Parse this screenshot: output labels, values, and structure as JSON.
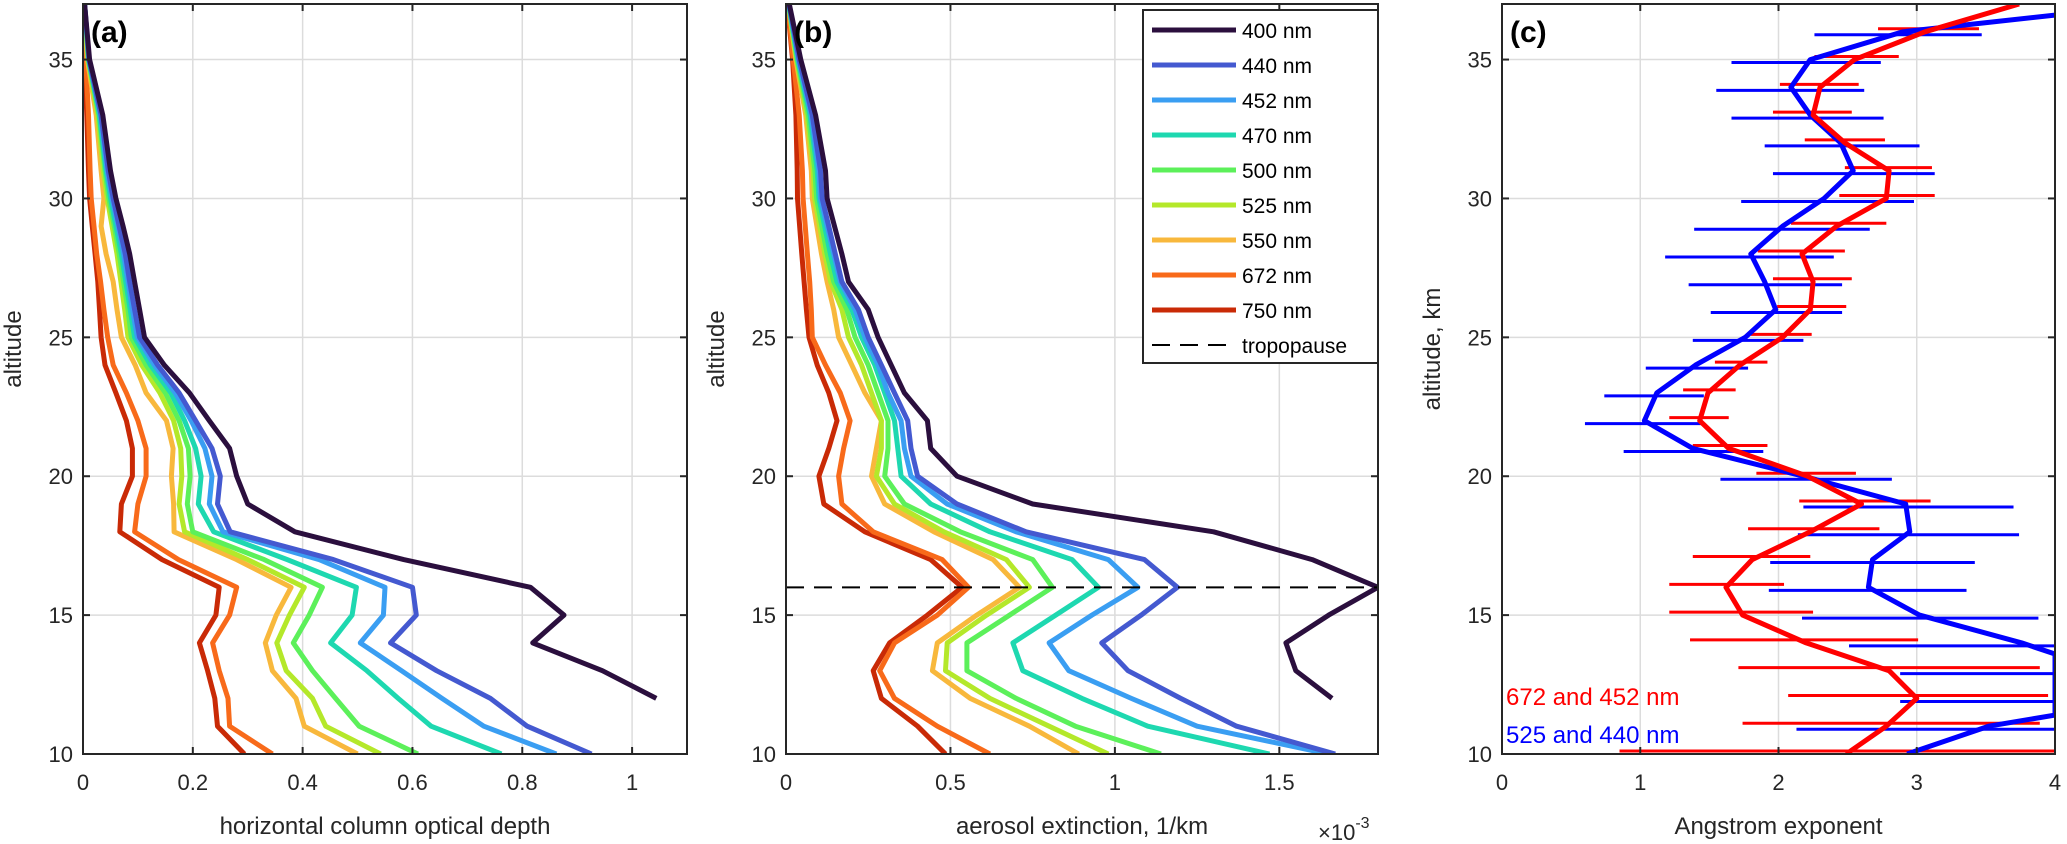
{
  "chart_data": [
    {
      "type": "line",
      "panel_label": "(a)",
      "title": "",
      "xlabel": "horizontal column optical depth",
      "ylabel": "altitude",
      "xlim": [
        0,
        1.1
      ],
      "ylim": [
        10,
        37
      ],
      "xticks": [
        0,
        0.2,
        0.4,
        0.6,
        0.8,
        1
      ],
      "xtick_labels": [
        "0",
        "0.2",
        "0.4",
        "0.6",
        "0.8",
        "1"
      ],
      "yticks": [
        10,
        15,
        20,
        25,
        30,
        35
      ],
      "ytick_labels": [
        "10",
        "15",
        "20",
        "25",
        "30",
        "35"
      ],
      "grid": true,
      "altitude": [
        37,
        35,
        33,
        31,
        30,
        29,
        28,
        27,
        26,
        25,
        24,
        23,
        22,
        21,
        20,
        19,
        18,
        17,
        16,
        15,
        14,
        13,
        12,
        11,
        10
      ],
      "series": [
        {
          "name": "400 nm",
          "color": "#2b0f3e",
          "values": [
            0.003,
            0.012,
            0.036,
            0.05,
            0.06,
            0.073,
            0.085,
            0.094,
            0.103,
            0.112,
            0.148,
            0.194,
            0.23,
            0.267,
            0.28,
            0.3,
            0.386,
            0.584,
            0.815,
            0.876,
            0.819,
            0.946,
            1.044,
            null,
            null
          ]
        },
        {
          "name": "440 nm",
          "color": "#4459d0",
          "values": [
            0.003,
            0.011,
            0.033,
            0.046,
            0.055,
            0.066,
            0.077,
            0.085,
            0.094,
            0.103,
            0.136,
            0.175,
            0.205,
            0.235,
            0.25,
            0.245,
            0.268,
            0.456,
            0.6,
            0.607,
            0.56,
            0.644,
            0.742,
            0.809,
            0.926
          ]
        },
        {
          "name": "452 nm",
          "color": "#3a9ef2",
          "values": [
            0.003,
            0.011,
            0.032,
            0.044,
            0.053,
            0.064,
            0.074,
            0.082,
            0.09,
            0.099,
            0.13,
            0.168,
            0.197,
            0.222,
            0.235,
            0.23,
            0.255,
            0.43,
            0.55,
            0.547,
            0.505,
            0.58,
            0.654,
            0.73,
            0.862
          ]
        },
        {
          "name": "470 nm",
          "color": "#1ed8b0",
          "values": [
            0.003,
            0.01,
            0.03,
            0.042,
            0.05,
            0.06,
            0.07,
            0.078,
            0.086,
            0.094,
            0.123,
            0.16,
            0.185,
            0.205,
            0.215,
            0.21,
            0.238,
            0.372,
            0.498,
            0.49,
            0.451,
            0.517,
            0.574,
            0.634,
            0.762
          ]
        },
        {
          "name": "500 nm",
          "color": "#5cf05a",
          "values": [
            0.003,
            0.01,
            0.029,
            0.04,
            0.047,
            0.057,
            0.066,
            0.074,
            0.082,
            0.088,
            0.115,
            0.15,
            0.175,
            0.192,
            0.195,
            0.19,
            0.2,
            0.33,
            0.436,
            0.412,
            0.383,
            0.418,
            0.46,
            0.503,
            0.61
          ]
        },
        {
          "name": "525 nm",
          "color": "#b4e82a",
          "values": [
            0.002,
            0.009,
            0.027,
            0.037,
            0.044,
            0.053,
            0.062,
            0.069,
            0.076,
            0.082,
            0.107,
            0.14,
            0.165,
            0.178,
            0.18,
            0.175,
            0.185,
            0.3,
            0.403,
            0.376,
            0.353,
            0.37,
            0.418,
            0.442,
            0.542
          ]
        },
        {
          "name": "550 nm",
          "color": "#f8b83c",
          "values": [
            0.002,
            0.008,
            0.024,
            0.033,
            0.038,
            0.033,
            0.042,
            0.055,
            0.062,
            0.07,
            0.095,
            0.115,
            0.152,
            0.164,
            0.161,
            0.165,
            0.166,
            0.28,
            0.379,
            0.352,
            0.332,
            0.345,
            0.388,
            0.403,
            0.5
          ]
        },
        {
          "name": "672 nm",
          "color": "#f86a1a",
          "values": [
            0.002,
            0.005,
            0.01,
            0.013,
            0.015,
            0.02,
            0.025,
            0.032,
            0.038,
            0.045,
            0.055,
            0.079,
            0.1,
            0.115,
            0.115,
            0.1,
            0.094,
            0.174,
            0.28,
            0.267,
            0.236,
            0.248,
            0.264,
            0.267,
            0.345
          ]
        },
        {
          "name": "750 nm",
          "color": "#c92a06",
          "values": [
            0.001,
            0.003,
            0.007,
            0.01,
            0.012,
            0.017,
            0.022,
            0.027,
            0.03,
            0.033,
            0.04,
            0.06,
            0.079,
            0.09,
            0.09,
            0.07,
            0.067,
            0.144,
            0.248,
            0.242,
            0.212,
            0.227,
            0.24,
            0.245,
            0.294
          ]
        }
      ]
    },
    {
      "type": "line",
      "panel_label": "(b)",
      "title": "",
      "xlabel": "aerosol extinction, 1/km",
      "x_multiplier_label": "×10",
      "x_multiplier_exponent": "-3",
      "ylabel": "altitude",
      "xlim": [
        0,
        1.8
      ],
      "ylim": [
        10,
        37
      ],
      "xticks": [
        0,
        0.5,
        1,
        1.5
      ],
      "xtick_labels": [
        "0",
        "0.5",
        "1",
        "1.5"
      ],
      "yticks": [
        10,
        15,
        20,
        25,
        30,
        35
      ],
      "ytick_labels": [
        "10",
        "15",
        "20",
        "25",
        "30",
        "35"
      ],
      "grid": true,
      "legend_position": "top-right",
      "tropopause": {
        "name": "tropopause",
        "altitude": 16,
        "style": "dashed",
        "color": "#000000"
      },
      "altitude": [
        37,
        35,
        33,
        31,
        30,
        28,
        27,
        26,
        25,
        24,
        23,
        22,
        21,
        20,
        19,
        18,
        17,
        16,
        15,
        14,
        13,
        12,
        11,
        10
      ],
      "series": [
        {
          "name": "400 nm",
          "color": "#2b0f3e",
          "values": [
            0.01,
            0.045,
            0.09,
            0.12,
            0.125,
            0.17,
            0.19,
            0.25,
            0.28,
            0.32,
            0.36,
            0.43,
            0.44,
            0.52,
            0.75,
            1.3,
            1.6,
            1.8,
            1.65,
            1.52,
            1.55,
            1.66,
            null,
            null
          ]
        },
        {
          "name": "440 nm",
          "color": "#4459d0",
          "values": [
            0.009,
            0.04,
            0.08,
            0.105,
            0.11,
            0.15,
            0.17,
            0.22,
            0.25,
            0.29,
            0.33,
            0.37,
            0.38,
            0.4,
            0.52,
            0.73,
            1.09,
            1.19,
            1.08,
            0.96,
            1.04,
            1.2,
            1.37,
            1.67
          ]
        },
        {
          "name": "452 nm",
          "color": "#3a9ef2",
          "values": [
            0.009,
            0.038,
            0.077,
            0.1,
            0.105,
            0.145,
            0.165,
            0.21,
            0.24,
            0.28,
            0.31,
            0.35,
            0.36,
            0.38,
            0.49,
            0.7,
            0.98,
            1.07,
            0.93,
            0.8,
            0.86,
            1.05,
            1.25,
            1.65
          ]
        },
        {
          "name": "470 nm",
          "color": "#1ed8b0",
          "values": [
            0.008,
            0.036,
            0.073,
            0.095,
            0.1,
            0.135,
            0.155,
            0.2,
            0.23,
            0.27,
            0.3,
            0.33,
            0.34,
            0.35,
            0.44,
            0.62,
            0.87,
            0.95,
            0.82,
            0.69,
            0.72,
            0.9,
            1.1,
            1.47
          ]
        },
        {
          "name": "500 nm",
          "color": "#5cf05a",
          "values": [
            0.008,
            0.034,
            0.068,
            0.088,
            0.093,
            0.125,
            0.145,
            0.185,
            0.21,
            0.25,
            0.28,
            0.31,
            0.31,
            0.3,
            0.36,
            0.53,
            0.75,
            0.81,
            0.68,
            0.55,
            0.55,
            0.7,
            0.88,
            1.14
          ]
        },
        {
          "name": "525 nm",
          "color": "#b4e82a",
          "values": [
            0.007,
            0.032,
            0.064,
            0.083,
            0.087,
            0.118,
            0.136,
            0.17,
            0.19,
            0.23,
            0.26,
            0.29,
            0.29,
            0.275,
            0.33,
            0.48,
            0.67,
            0.74,
            0.61,
            0.49,
            0.485,
            0.62,
            0.8,
            0.98
          ]
        },
        {
          "name": "550 nm",
          "color": "#f8b83c",
          "values": [
            0.007,
            0.03,
            0.06,
            0.077,
            0.08,
            0.108,
            0.125,
            0.145,
            0.16,
            0.2,
            0.24,
            0.29,
            0.275,
            0.26,
            0.3,
            0.45,
            0.63,
            0.71,
            0.58,
            0.46,
            0.445,
            0.56,
            0.74,
            0.89
          ]
        },
        {
          "name": "672 nm",
          "color": "#f86a1a",
          "values": [
            0.005,
            0.022,
            0.04,
            0.05,
            0.052,
            0.065,
            0.072,
            0.077,
            0.08,
            0.12,
            0.165,
            0.195,
            0.175,
            0.16,
            0.17,
            0.265,
            0.475,
            0.555,
            0.46,
            0.33,
            0.285,
            0.33,
            0.46,
            0.62
          ]
        },
        {
          "name": "750 nm",
          "color": "#c92a06",
          "values": [
            0.004,
            0.02,
            0.03,
            0.034,
            0.035,
            0.048,
            0.055,
            0.062,
            0.07,
            0.095,
            0.13,
            0.155,
            0.13,
            0.1,
            0.115,
            0.24,
            0.44,
            0.535,
            0.43,
            0.315,
            0.265,
            0.29,
            0.4,
            0.485
          ]
        }
      ]
    },
    {
      "type": "line",
      "panel_label": "(c)",
      "title": "",
      "xlabel": "Angstrom exponent",
      "ylabel": "altitude, km",
      "xlim": [
        0,
        4
      ],
      "ylim": [
        10,
        37
      ],
      "xticks": [
        0,
        1,
        2,
        3,
        4
      ],
      "xtick_labels": [
        "0",
        "1",
        "2",
        "3",
        "4"
      ],
      "yticks": [
        10,
        15,
        20,
        25,
        30,
        35
      ],
      "ytick_labels": [
        "10",
        "15",
        "20",
        "25",
        "30",
        "35"
      ],
      "grid": true,
      "annotations": [
        {
          "text": "672 and  452 nm",
          "color": "#ff0000"
        },
        {
          "text": "525 and  440 nm",
          "color": "#0000ff"
        }
      ],
      "series": [
        {
          "name": "672 and 452 nm",
          "color": "#ff0000",
          "altitude": [
            37,
            36,
            35,
            34,
            33,
            32,
            31,
            30,
            29,
            28,
            27,
            26,
            25,
            24,
            23,
            22,
            21,
            20,
            19,
            18,
            17,
            16,
            15,
            14,
            13,
            12,
            11,
            10
          ],
          "values": [
            3.74,
            3.06,
            2.55,
            2.3,
            2.25,
            2.48,
            2.8,
            2.78,
            2.42,
            2.17,
            2.25,
            2.23,
            2.03,
            1.72,
            1.49,
            1.43,
            1.64,
            2.21,
            2.6,
            2.23,
            1.81,
            1.62,
            1.74,
            2.2,
            2.8,
            3.0,
            2.78,
            2.49
          ],
          "err_low": [
            null,
            2.72,
            2.26,
            2.01,
            1.96,
            2.19,
            2.48,
            2.44,
            2.09,
            1.85,
            1.96,
            1.99,
            1.8,
            1.54,
            1.31,
            1.21,
            1.38,
            1.84,
            2.15,
            1.78,
            1.38,
            1.21,
            1.21,
            1.36,
            1.71,
            2.07,
            1.74,
            0.85
          ],
          "err_high": [
            null,
            3.45,
            2.87,
            2.58,
            2.53,
            2.77,
            3.11,
            3.13,
            2.78,
            2.48,
            2.53,
            2.49,
            2.24,
            1.92,
            1.69,
            1.64,
            1.92,
            2.56,
            3.1,
            2.73,
            2.23,
            2.04,
            2.25,
            3.01,
            3.89,
            3.95,
            3.89,
            4.0
          ]
        },
        {
          "name": "525 and 440 nm",
          "color": "#0000ff",
          "altitude": [
            36.6,
            36,
            35,
            34,
            33,
            32,
            31,
            30,
            29,
            28,
            27,
            26,
            25,
            24,
            23,
            22,
            21,
            20,
            19,
            18,
            17,
            16,
            15,
            14,
            13.6,
            11.4,
            11,
            10
          ],
          "values": [
            4.0,
            2.9,
            2.23,
            2.09,
            2.23,
            2.45,
            2.54,
            2.33,
            2.03,
            1.8,
            1.9,
            1.98,
            1.76,
            1.4,
            1.12,
            1.03,
            1.38,
            2.18,
            2.92,
            2.95,
            2.68,
            2.65,
            3.02,
            3.76,
            4.0,
            4.0,
            3.52,
            2.93
          ],
          "err_low": [
            null,
            2.26,
            1.66,
            1.55,
            1.66,
            1.9,
            1.96,
            1.73,
            1.39,
            1.18,
            1.35,
            1.51,
            1.38,
            1.04,
            0.74,
            0.6,
            0.88,
            1.58,
            2.18,
            2.14,
            1.94,
            1.93,
            2.17,
            2.51,
            null,
            null,
            2.13,
            0.61
          ],
          "err_high": [
            null,
            3.47,
            2.74,
            2.62,
            2.76,
            3.02,
            3.13,
            2.98,
            2.66,
            2.4,
            2.46,
            2.46,
            2.18,
            1.78,
            1.46,
            1.45,
            1.89,
            2.82,
            3.7,
            3.74,
            3.42,
            3.36,
            3.88,
            4.0,
            null,
            null,
            4.0,
            4.0
          ]
        }
      ],
      "blue_offscale_errorbars": [
        {
          "altitude": 13,
          "err_low": 2.88,
          "err_high": 4.0
        },
        {
          "altitude": 12,
          "err_low": 2.88,
          "err_high": 4.0
        }
      ]
    }
  ]
}
